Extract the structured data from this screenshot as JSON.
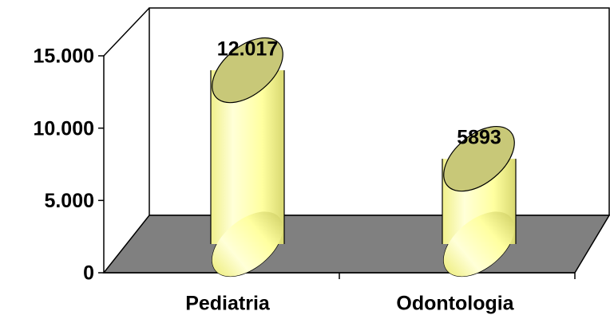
{
  "chart_data": {
    "type": "cylinder",
    "categories": [
      "Pediatria",
      "Odontologia"
    ],
    "values": [
      12017,
      5893
    ],
    "value_labels": [
      "12.017",
      "5893"
    ],
    "color": "#ffff99",
    "ylim": [
      0,
      15000
    ],
    "yticks": [
      0,
      {
        "value": 5000,
        "label": "5.000"
      },
      {
        "value": 10000,
        "label": "10.000"
      },
      {
        "value": 15000,
        "label": "15.000"
      }
    ]
  }
}
